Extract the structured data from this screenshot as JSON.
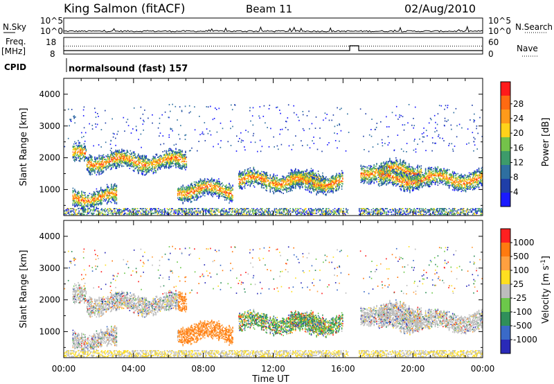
{
  "header": {
    "station": "King Salmon (fitACF)",
    "beam": "Beam 11",
    "date": "02/Aug/2010"
  },
  "top_panels": {
    "nsky_label": "N.Sky",
    "nsearch_label": "N.Search",
    "n_ticks": [
      "10^5",
      "10^0"
    ],
    "freq_label": "Freq.",
    "freq_unit": "[MHz]",
    "freq_ticks": [
      "18",
      "8"
    ],
    "nave_label": "Nave",
    "nave_ticks": [
      "60",
      "0"
    ],
    "cpid_label": "CPID",
    "cpid_text": "normalsound (fast) 157"
  },
  "colors": {
    "power_scale": [
      "#1a1aff",
      "#1f3fa8",
      "#2e6fa0",
      "#3d9b6a",
      "#74c24a",
      "#ffd21a",
      "#ff9a1a",
      "#ff6a12",
      "#ff1a1a"
    ],
    "velocity_scale": [
      "#2a2ab8",
      "#3a6ac8",
      "#2f8f5a",
      "#6cc84a",
      "#bdbdbd",
      "#ffdf20",
      "#ffa040",
      "#ff7a10",
      "#ff2020"
    ]
  },
  "chart_data": [
    {
      "type": "heatmap",
      "name": "power",
      "xlabel": "",
      "ylabel": "Slant Range [km]",
      "xlim": [
        "00:00",
        "24:00"
      ],
      "ylim": [
        180,
        4500
      ],
      "yticks": [
        "1000",
        "2000",
        "3000",
        "4000"
      ],
      "colorbar": {
        "label": "Power [dB]",
        "ticks": [
          "4",
          "8",
          "12",
          "16",
          "20",
          "24",
          "28"
        ],
        "range": [
          0,
          30
        ]
      },
      "echo_regions": [
        {
          "t_start": 0.5,
          "t_end": 1.3,
          "range_km": 2100
        },
        {
          "t_start": 1.3,
          "t_end": 7.0,
          "range_km": 1900
        },
        {
          "t_start": 0.5,
          "t_end": 3.0,
          "range_km": 780
        },
        {
          "t_start": 6.5,
          "t_end": 9.7,
          "range_km": 1000
        },
        {
          "t_start": 10.0,
          "t_end": 15.0,
          "range_km": 1300
        },
        {
          "t_start": 13.0,
          "t_end": 16.0,
          "range_km": 1250
        },
        {
          "t_start": 17.0,
          "t_end": 20.5,
          "range_km": 1600
        },
        {
          "t_start": 18.0,
          "t_end": 24.0,
          "range_km": 1350
        }
      ]
    },
    {
      "type": "heatmap",
      "name": "velocity",
      "xlabel": "Time UT",
      "ylabel": "Slant Range [km]",
      "xlim": [
        "00:00",
        "24:00"
      ],
      "ylim": [
        180,
        4500
      ],
      "yticks": [
        "1000",
        "2000",
        "3000",
        "4000"
      ],
      "xticks": [
        "00:00",
        "04:00",
        "08:00",
        "12:00",
        "16:00",
        "20:00",
        "00:00"
      ],
      "colorbar": {
        "label": "Velocity [m s",
        "label_exp": "-1",
        "label_close": "]",
        "ticks": [
          "1000",
          "500",
          "100",
          "25",
          "-25",
          "-100",
          "-500",
          "-1000"
        ]
      }
    }
  ]
}
